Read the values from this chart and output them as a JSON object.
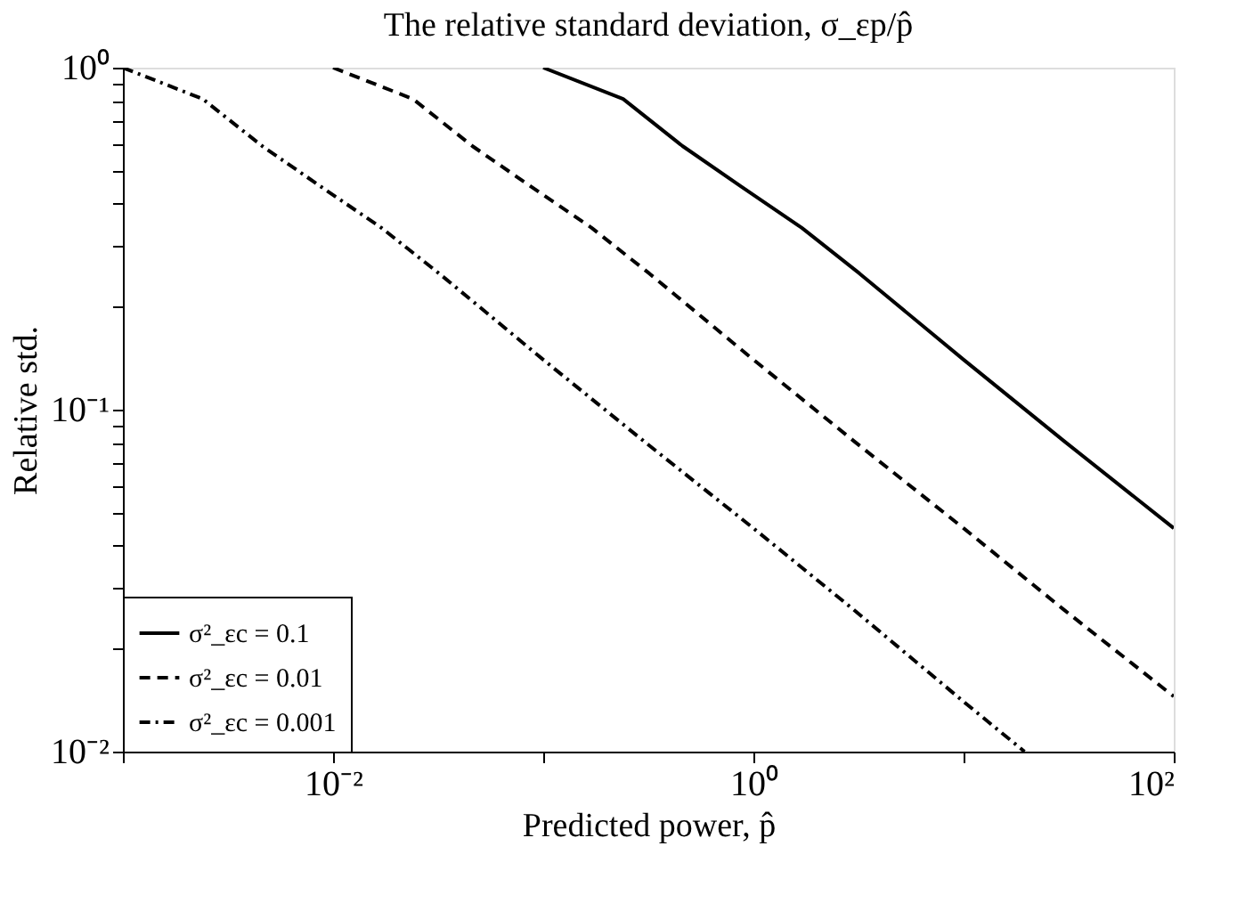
{
  "chart_data": {
    "type": "line",
    "title": "The relative standard deviation, σ_εp/p̂",
    "xlabel": "Predicted power, p̂",
    "ylabel": "Relative std.",
    "log": "xy",
    "grid": false,
    "legend": "bottom left",
    "marker": "none",
    "xlim": [
      0.001,
      100
    ],
    "ylim": [
      0.01,
      1
    ],
    "xticks": [
      {
        "value": 0.001,
        "label": null
      },
      {
        "value": 0.01,
        "label": "10⁻²"
      },
      {
        "value": 0.1,
        "label": null
      },
      {
        "value": 1,
        "label": "10⁰"
      },
      {
        "value": 10,
        "label": null
      },
      {
        "value": 100,
        "label": "10²"
      }
    ],
    "yticks": [
      {
        "value": 0.01,
        "label": "10⁻²"
      },
      {
        "value": 0.02,
        "label": null
      },
      {
        "value": 0.03,
        "label": null
      },
      {
        "value": 0.04,
        "label": null
      },
      {
        "value": 0.05,
        "label": null
      },
      {
        "value": 0.06,
        "label": null
      },
      {
        "value": 0.07,
        "label": null
      },
      {
        "value": 0.08,
        "label": null
      },
      {
        "value": 0.09,
        "label": null
      },
      {
        "value": 0.1,
        "label": "10⁻¹"
      },
      {
        "value": 0.2,
        "label": null
      },
      {
        "value": 0.3,
        "label": null
      },
      {
        "value": 0.4,
        "label": null
      },
      {
        "value": 0.5,
        "label": null
      },
      {
        "value": 0.6,
        "label": null
      },
      {
        "value": 0.7,
        "label": null
      },
      {
        "value": 0.8,
        "label": null
      },
      {
        "value": 0.9,
        "label": null
      },
      {
        "value": 1,
        "label": "10⁰"
      }
    ],
    "series": [
      {
        "name": "σ²_εc = 0.1",
        "color": "#000000",
        "line_style": "solid",
        "x": [
          0.1,
          0.24,
          0.46,
          0.87,
          1.7,
          3.2,
          10,
          30,
          100
        ],
        "values": [
          1,
          0.81,
          0.59,
          0.45,
          0.34,
          0.25,
          0.14,
          0.081,
          0.045
        ]
      },
      {
        "name": "σ²_εc = 0.01",
        "color": "#000000",
        "line_style": "dashed",
        "x": [
          0.01,
          0.024,
          0.046,
          0.087,
          0.17,
          0.32,
          1,
          3,
          10,
          30,
          100
        ],
        "values": [
          1,
          0.81,
          0.59,
          0.45,
          0.34,
          0.25,
          0.14,
          0.081,
          0.045,
          0.026,
          0.0145
        ]
      },
      {
        "name": "σ²_εc = 0.001",
        "color": "#000000",
        "line_style": "dotted",
        "x": [
          0.001,
          0.0024,
          0.0046,
          0.0087,
          0.017,
          0.032,
          0.1,
          0.3,
          1,
          3,
          10,
          19.5
        ],
        "values": [
          1,
          0.81,
          0.59,
          0.45,
          0.34,
          0.25,
          0.14,
          0.081,
          0.045,
          0.026,
          0.014,
          0.01
        ]
      }
    ]
  }
}
